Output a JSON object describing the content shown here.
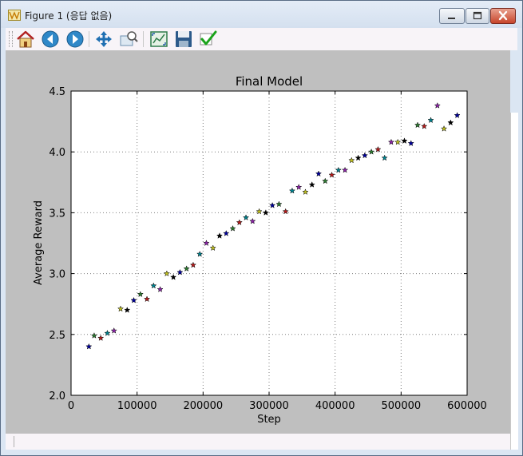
{
  "window": {
    "title": "Figure 1 (응답 없음)"
  },
  "toolbar": {
    "tools": [
      {
        "name": "home-icon"
      },
      {
        "name": "back-arrow-icon"
      },
      {
        "name": "forward-arrow-icon"
      },
      {
        "name": "pan-move-icon"
      },
      {
        "name": "zoom-rect-icon"
      },
      {
        "name": "subplots-config-icon"
      },
      {
        "name": "save-disk-icon"
      },
      {
        "name": "checkmark-icon"
      }
    ]
  },
  "colors": {
    "canvas_bg": "#bfbfbf",
    "grid": "#7f7f7f",
    "close_button": "#c7452b"
  },
  "chart_data": {
    "type": "scatter",
    "title": "Final Model",
    "xlabel": "Step",
    "ylabel": "Average Reward",
    "xlim": [
      0,
      600000
    ],
    "ylim": [
      2.0,
      4.5
    ],
    "xticks": [
      0,
      100000,
      200000,
      300000,
      400000,
      500000,
      600000
    ],
    "yticks": [
      2.0,
      2.5,
      3.0,
      3.5,
      4.0,
      4.5
    ],
    "xtick_labels": [
      "0",
      "100000",
      "200000",
      "300000",
      "400000",
      "500000",
      "600000"
    ],
    "ytick_labels": [
      "2.0",
      "2.5",
      "3.0",
      "3.5",
      "4.0",
      "4.5"
    ],
    "grid": true,
    "marker": "star",
    "points": [
      {
        "x": 27000,
        "y": 2.4,
        "color": "#0000a0"
      },
      {
        "x": 35000,
        "y": 2.49,
        "color": "#2e7d32"
      },
      {
        "x": 45000,
        "y": 2.47,
        "color": "#b71c1c"
      },
      {
        "x": 55000,
        "y": 2.51,
        "color": "#00838f"
      },
      {
        "x": 65000,
        "y": 2.53,
        "color": "#8e24aa"
      },
      {
        "x": 75000,
        "y": 2.71,
        "color": "#c0c020"
      },
      {
        "x": 85000,
        "y": 2.7,
        "color": "#000000"
      },
      {
        "x": 95000,
        "y": 2.78,
        "color": "#0000a0"
      },
      {
        "x": 105000,
        "y": 2.83,
        "color": "#2e7d32"
      },
      {
        "x": 115000,
        "y": 2.79,
        "color": "#b71c1c"
      },
      {
        "x": 125000,
        "y": 2.9,
        "color": "#00838f"
      },
      {
        "x": 135000,
        "y": 2.87,
        "color": "#8e24aa"
      },
      {
        "x": 145000,
        "y": 3.0,
        "color": "#c0c020"
      },
      {
        "x": 155000,
        "y": 2.97,
        "color": "#000000"
      },
      {
        "x": 165000,
        "y": 3.01,
        "color": "#0000a0"
      },
      {
        "x": 175000,
        "y": 3.04,
        "color": "#2e7d32"
      },
      {
        "x": 185000,
        "y": 3.07,
        "color": "#b71c1c"
      },
      {
        "x": 195000,
        "y": 3.16,
        "color": "#00838f"
      },
      {
        "x": 205000,
        "y": 3.25,
        "color": "#8e24aa"
      },
      {
        "x": 215000,
        "y": 3.21,
        "color": "#c0c020"
      },
      {
        "x": 225000,
        "y": 3.31,
        "color": "#000000"
      },
      {
        "x": 235000,
        "y": 3.33,
        "color": "#0000a0"
      },
      {
        "x": 245000,
        "y": 3.37,
        "color": "#2e7d32"
      },
      {
        "x": 255000,
        "y": 3.42,
        "color": "#b71c1c"
      },
      {
        "x": 265000,
        "y": 3.46,
        "color": "#00838f"
      },
      {
        "x": 275000,
        "y": 3.43,
        "color": "#8e24aa"
      },
      {
        "x": 285000,
        "y": 3.51,
        "color": "#c0c020"
      },
      {
        "x": 295000,
        "y": 3.5,
        "color": "#000000"
      },
      {
        "x": 305000,
        "y": 3.56,
        "color": "#0000a0"
      },
      {
        "x": 315000,
        "y": 3.57,
        "color": "#2e7d32"
      },
      {
        "x": 325000,
        "y": 3.51,
        "color": "#b71c1c"
      },
      {
        "x": 335000,
        "y": 3.68,
        "color": "#00838f"
      },
      {
        "x": 345000,
        "y": 3.71,
        "color": "#8e24aa"
      },
      {
        "x": 355000,
        "y": 3.67,
        "color": "#c0c020"
      },
      {
        "x": 365000,
        "y": 3.73,
        "color": "#000000"
      },
      {
        "x": 375000,
        "y": 3.82,
        "color": "#0000a0"
      },
      {
        "x": 385000,
        "y": 3.76,
        "color": "#2e7d32"
      },
      {
        "x": 395000,
        "y": 3.81,
        "color": "#b71c1c"
      },
      {
        "x": 405000,
        "y": 3.85,
        "color": "#00838f"
      },
      {
        "x": 415000,
        "y": 3.85,
        "color": "#8e24aa"
      },
      {
        "x": 425000,
        "y": 3.93,
        "color": "#c0c020"
      },
      {
        "x": 435000,
        "y": 3.95,
        "color": "#000000"
      },
      {
        "x": 445000,
        "y": 3.97,
        "color": "#0000a0"
      },
      {
        "x": 455000,
        "y": 4.0,
        "color": "#2e7d32"
      },
      {
        "x": 465000,
        "y": 4.02,
        "color": "#b71c1c"
      },
      {
        "x": 475000,
        "y": 3.95,
        "color": "#00838f"
      },
      {
        "x": 485000,
        "y": 4.08,
        "color": "#8e24aa"
      },
      {
        "x": 495000,
        "y": 4.08,
        "color": "#c0c020"
      },
      {
        "x": 505000,
        "y": 4.09,
        "color": "#000000"
      },
      {
        "x": 515000,
        "y": 4.07,
        "color": "#0000a0"
      },
      {
        "x": 525000,
        "y": 4.22,
        "color": "#2e7d32"
      },
      {
        "x": 535000,
        "y": 4.21,
        "color": "#b71c1c"
      },
      {
        "x": 545000,
        "y": 4.26,
        "color": "#00838f"
      },
      {
        "x": 555000,
        "y": 4.38,
        "color": "#8e24aa"
      },
      {
        "x": 565000,
        "y": 4.19,
        "color": "#c0c020"
      },
      {
        "x": 575000,
        "y": 4.24,
        "color": "#000000"
      },
      {
        "x": 585000,
        "y": 4.3,
        "color": "#0000a0"
      }
    ]
  }
}
